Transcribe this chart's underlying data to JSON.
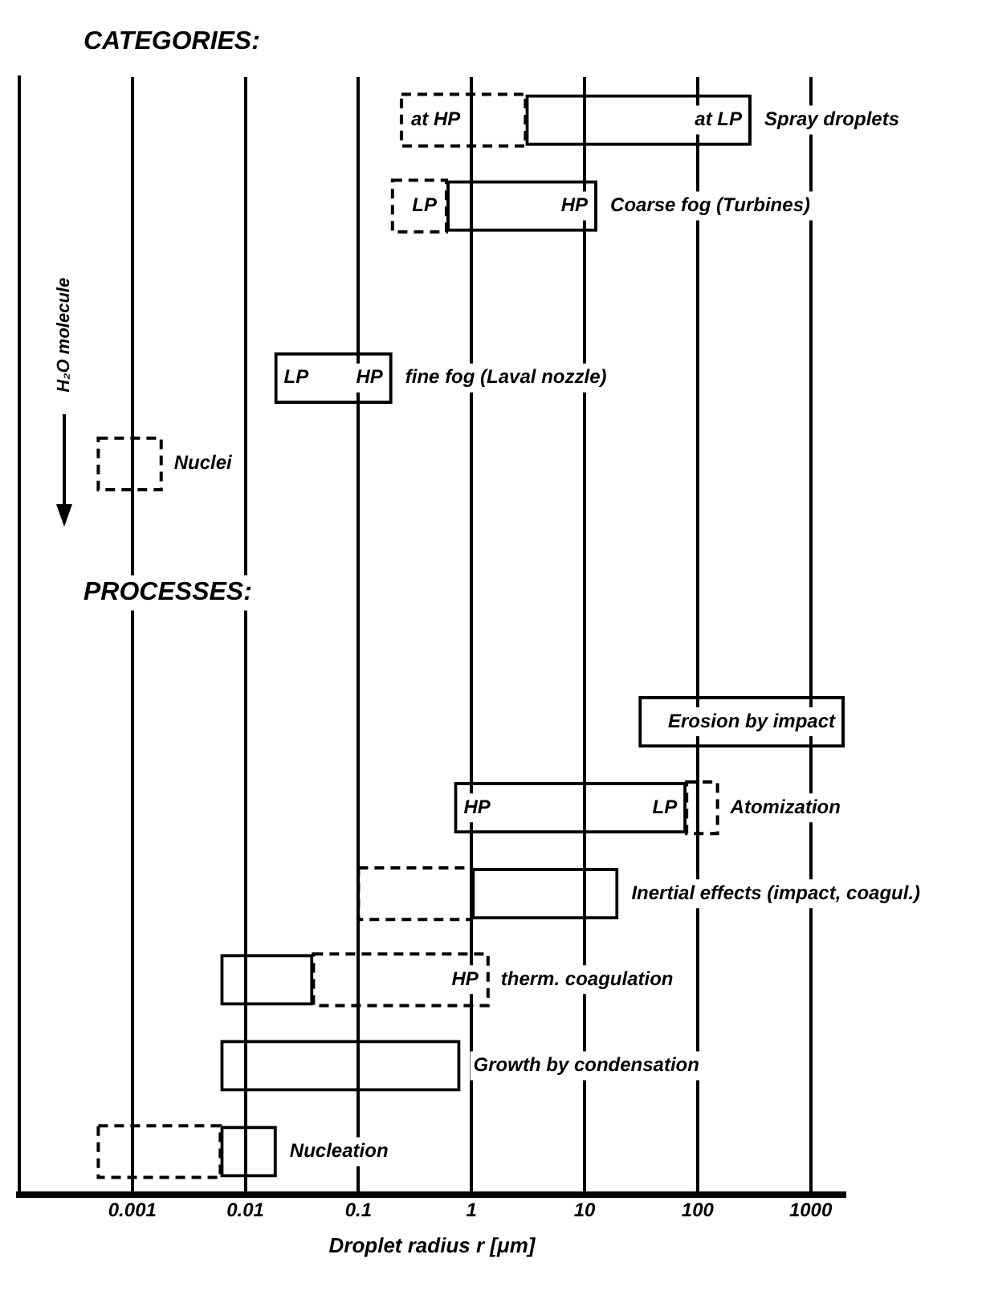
{
  "chart_data": {
    "type": "bar",
    "orientation": "horizontal",
    "log": "x",
    "xlabel": "Droplet radius r [μm]",
    "categories": [
      "Spray droplets",
      "Coarse fog (Turbines)",
      null,
      "fine fog (Laval nozzle)",
      "Nuclei",
      null,
      null,
      "Erosion by impact",
      "Atomization",
      "Inertial effects (impact, coagul.)",
      "therm. coagulation",
      "Growth by condensation",
      "Nucleation"
    ],
    "series": [
      {
        "color": "#000000",
        "line_style": "solid",
        "base": [
          3,
          0.6,
          null,
          0.018,
          null,
          null,
          null,
          30,
          0.7,
          1,
          0.006,
          0.006,
          0.006
        ],
        "values": [
          297,
          12.4,
          null,
          0.182,
          null,
          null,
          null,
          1970,
          79.3,
          19,
          0.034,
          0.794,
          0.013
        ]
      },
      {
        "color": "#000000",
        "line_style": "dashed",
        "base": [
          0.24,
          0.2,
          null,
          null,
          0.0005,
          null,
          null,
          null,
          80,
          0.1,
          0.04,
          null,
          0.0005
        ],
        "values": [
          2.76,
          0.4,
          null,
          null,
          0.0013,
          null,
          null,
          null,
          70,
          0.9,
          1.36,
          null,
          0.0055
        ]
      }
    ],
    "xlim": [
      0.0001,
      2000
    ],
    "xticks": [
      {
        "value": 0.001,
        "label": "0.001"
      },
      {
        "value": 0.01,
        "label": "0.01"
      },
      {
        "value": 0.1,
        "label": "0.1"
      },
      1,
      10,
      100,
      1000
    ],
    "grid": "x",
    "tick_labels": "x",
    "annotations": [
      "CATEGORIES:",
      "PROCESSES:",
      "H₂O molecule",
      {
        "text": "at HP",
        "x": 0.24,
        "y": "Spray droplets"
      },
      {
        "text": "at LP",
        "x": 300,
        "y": "Spray droplets"
      },
      {
        "text": "LP",
        "x": 0.6,
        "y": "Coarse fog (Turbines)"
      },
      {
        "text": "HP",
        "x": 13,
        "y": "Coarse fog (Turbines)"
      },
      {
        "text": "LP",
        "x": 0.018,
        "y": "fine fog (Laval nozzle)"
      },
      {
        "text": "HP",
        "x": 0.2,
        "y": "fine fog (Laval nozzle)"
      },
      {
        "text": "HP",
        "x": 0.7,
        "y": "Atomization"
      },
      {
        "text": "LP",
        "x": 80,
        "y": "Atomization"
      },
      {
        "text": "HP",
        "x": 1.4,
        "y": "therm. coagulation"
      }
    ]
  }
}
